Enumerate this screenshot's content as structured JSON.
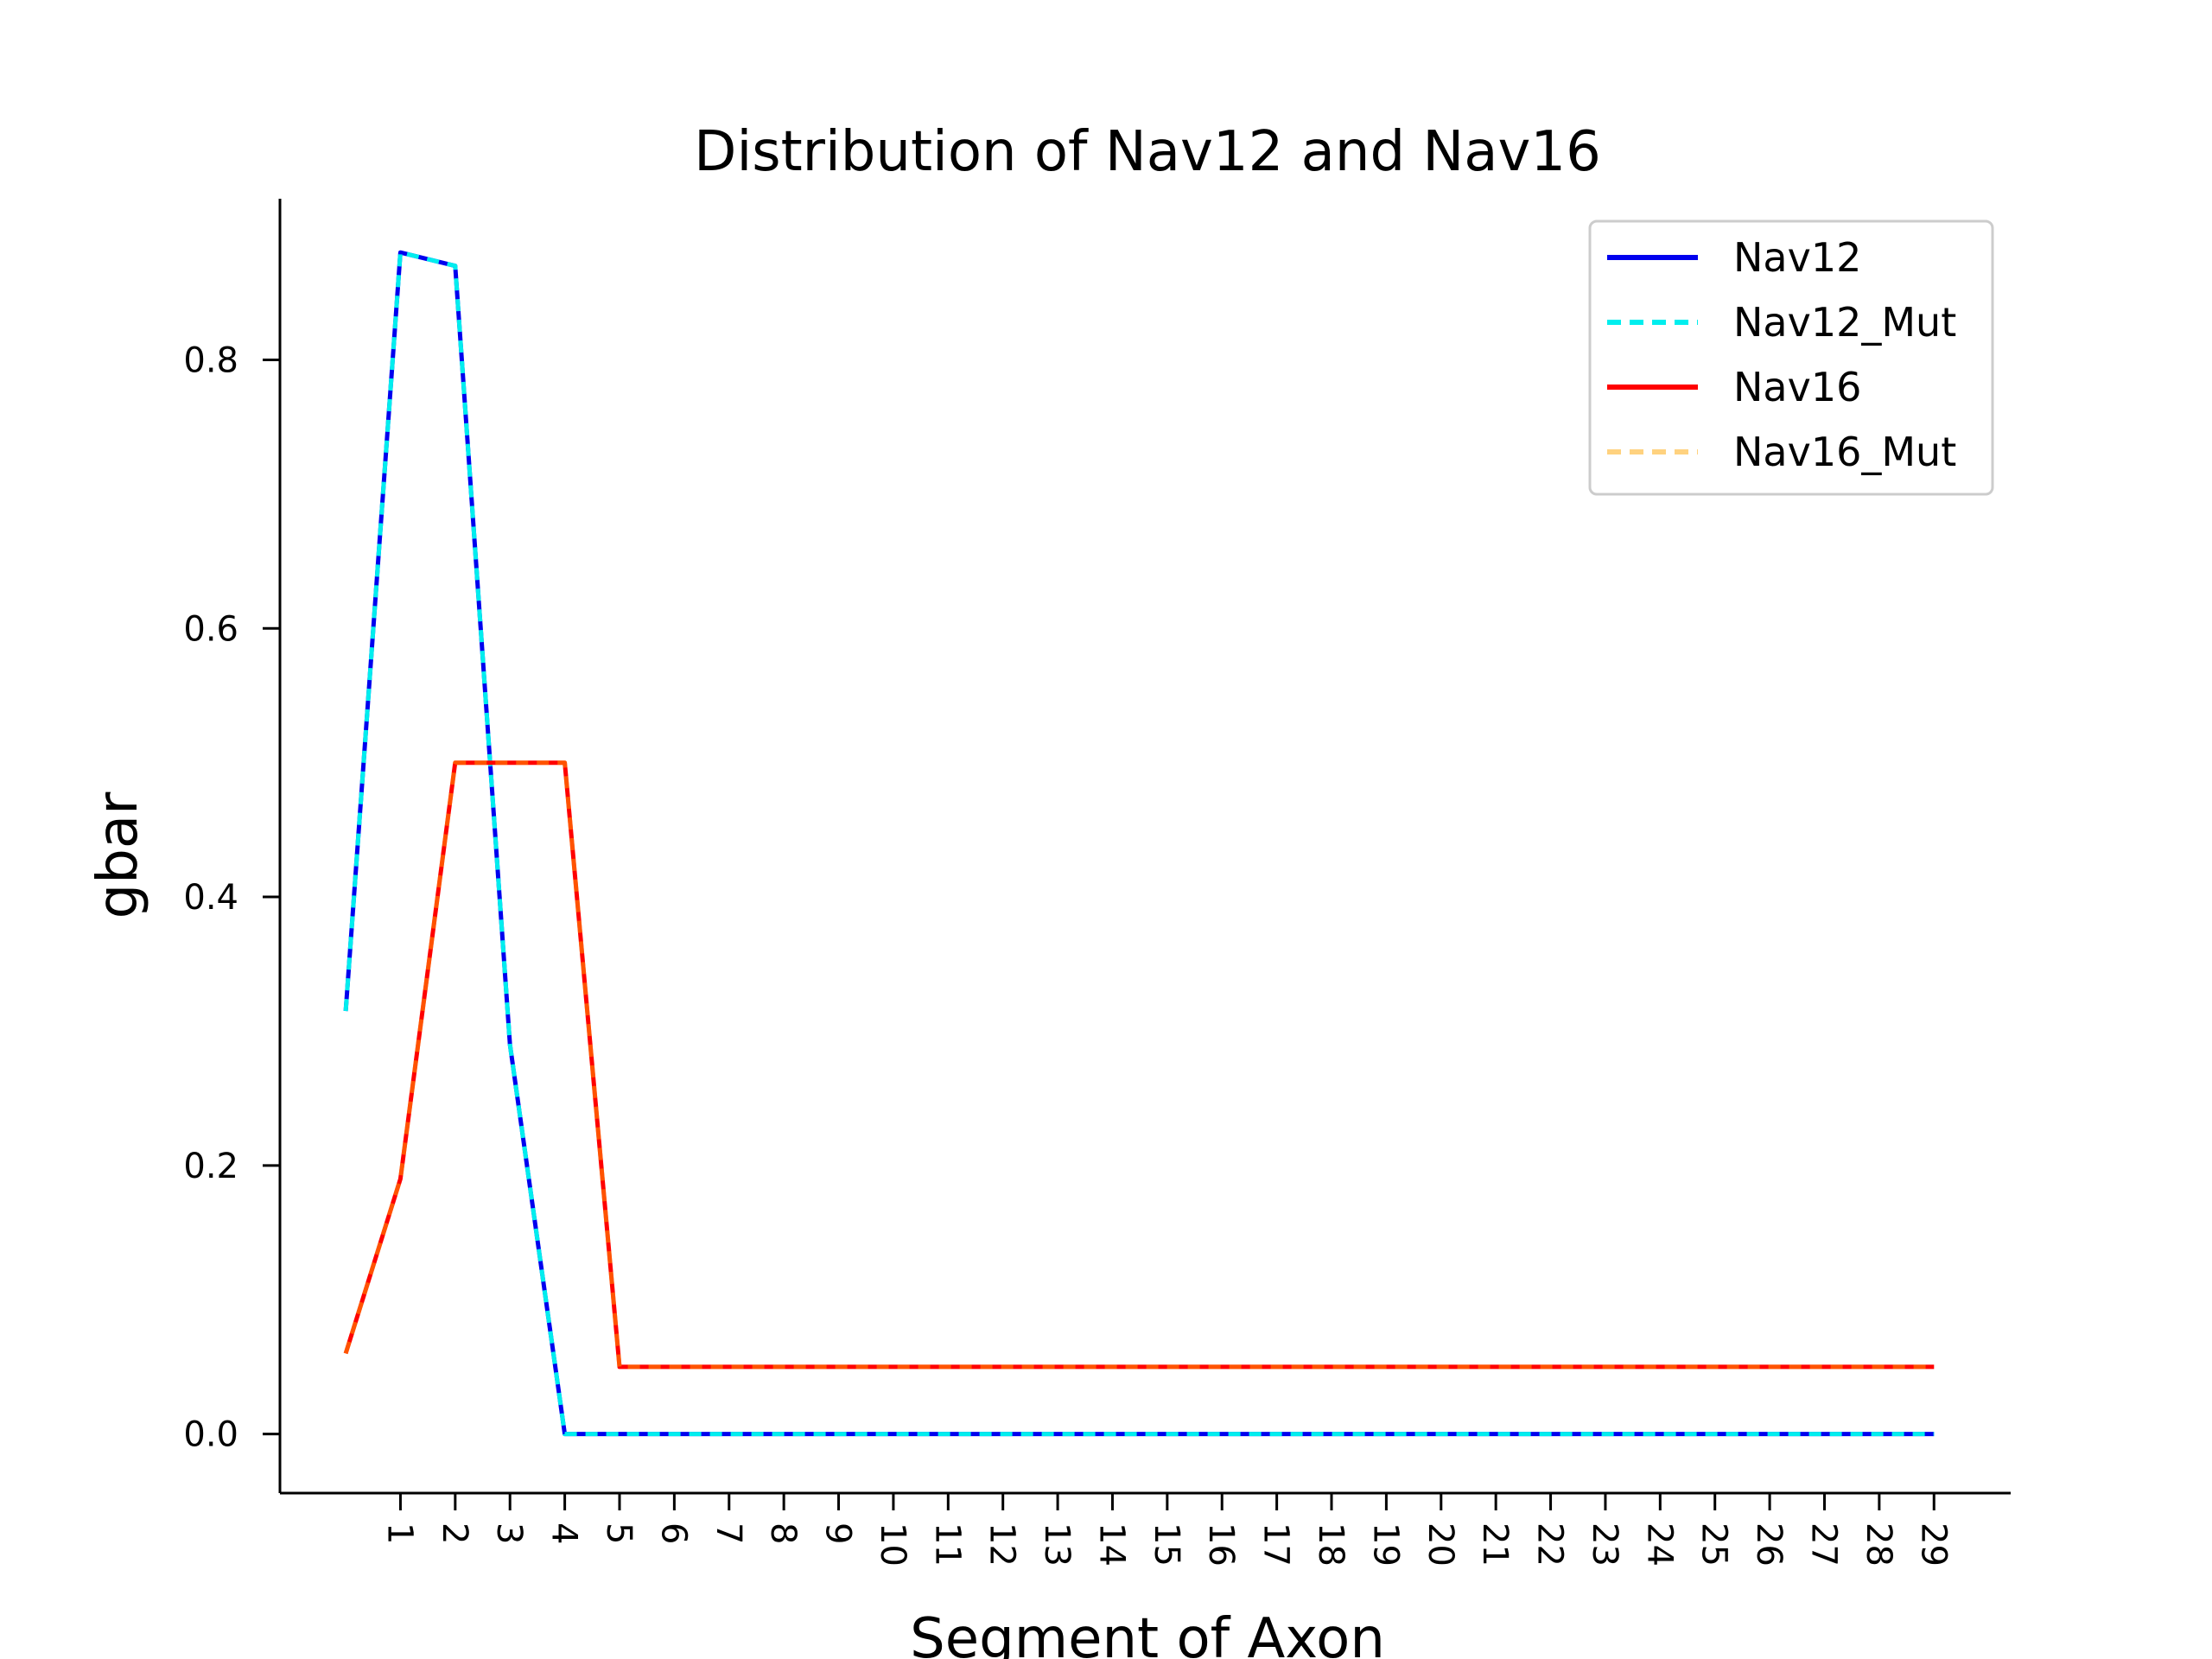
{
  "chart_data": {
    "type": "line",
    "title": "Distribution of Nav12 and Nav16",
    "xlabel": "Segment of Axon",
    "ylabel": "gbar",
    "x": [
      0,
      1,
      2,
      3,
      4,
      5,
      6,
      7,
      8,
      9,
      10,
      11,
      12,
      13,
      14,
      15,
      16,
      17,
      18,
      19,
      20,
      21,
      22,
      23,
      24,
      25,
      26,
      27,
      28,
      29
    ],
    "xticks": [
      "1",
      "2",
      "3",
      "4",
      "5",
      "6",
      "7",
      "8",
      "9",
      "10",
      "11",
      "12",
      "13",
      "14",
      "15",
      "16",
      "17",
      "18",
      "19",
      "20",
      "21",
      "22",
      "23",
      "24",
      "25",
      "26",
      "27",
      "28",
      "29"
    ],
    "yticks": [
      "0.0",
      "0.2",
      "0.4",
      "0.6",
      "0.8"
    ],
    "ylim": [
      -0.044,
      0.92
    ],
    "xlim": [
      -1.2,
      30.4
    ],
    "grid": false,
    "legend_position": "top-right",
    "series": [
      {
        "name": "Nav12",
        "color": "#0000ee",
        "style": "solid",
        "values": [
          0.315,
          0.88,
          0.87,
          0.29,
          0,
          0,
          0,
          0,
          0,
          0,
          0,
          0,
          0,
          0,
          0,
          0,
          0,
          0,
          0,
          0,
          0,
          0,
          0,
          0,
          0,
          0,
          0,
          0,
          0,
          0
        ]
      },
      {
        "name": "Nav12_Mut",
        "color": "#00eeee",
        "style": "dashed",
        "values": [
          0.315,
          0.88,
          0.87,
          0.29,
          0,
          0,
          0,
          0,
          0,
          0,
          0,
          0,
          0,
          0,
          0,
          0,
          0,
          0,
          0,
          0,
          0,
          0,
          0,
          0,
          0,
          0,
          0,
          0,
          0,
          0
        ]
      },
      {
        "name": "Nav16",
        "color": "#ff0000",
        "style": "solid",
        "values": [
          0.06,
          0.19,
          0.5,
          0.5,
          0.5,
          0.05,
          0.05,
          0.05,
          0.05,
          0.05,
          0.05,
          0.05,
          0.05,
          0.05,
          0.05,
          0.05,
          0.05,
          0.05,
          0.05,
          0.05,
          0.05,
          0.05,
          0.05,
          0.05,
          0.05,
          0.05,
          0.05,
          0.05,
          0.05,
          0.05
        ]
      },
      {
        "name": "Nav16_Mut",
        "color": "#ffa500",
        "style": "dashed",
        "values": [
          0.06,
          0.19,
          0.5,
          0.5,
          0.5,
          0.05,
          0.05,
          0.05,
          0.05,
          0.05,
          0.05,
          0.05,
          0.05,
          0.05,
          0.05,
          0.05,
          0.05,
          0.05,
          0.05,
          0.05,
          0.05,
          0.05,
          0.05,
          0.05,
          0.05,
          0.05,
          0.05,
          0.05,
          0.05,
          0.05
        ]
      }
    ]
  }
}
